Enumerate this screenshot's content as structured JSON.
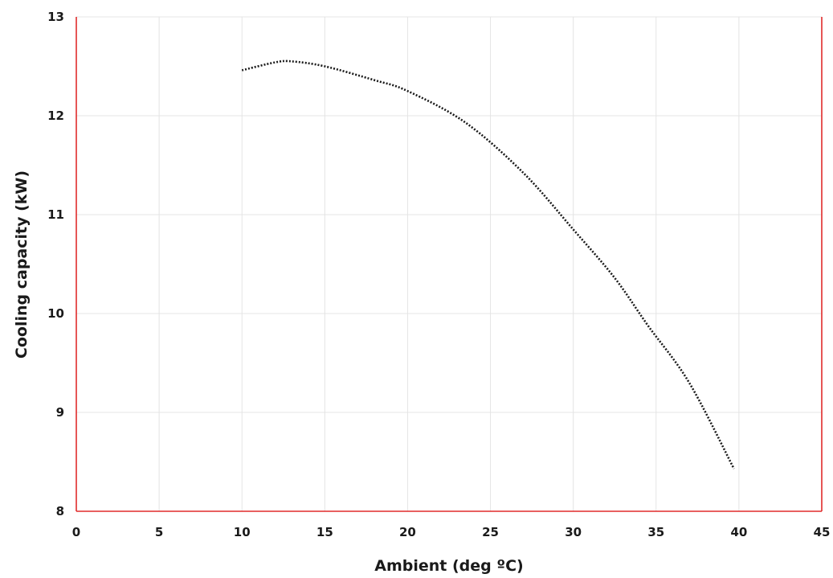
{
  "chart_data": {
    "type": "line",
    "title": "",
    "xlabel": "Ambient (deg ºC)",
    "ylabel": "Cooling capacity (kW)",
    "xlim": [
      0,
      45
    ],
    "ylim": [
      8,
      13
    ],
    "xticks": [
      0,
      5,
      10,
      15,
      20,
      25,
      30,
      35,
      40,
      45
    ],
    "yticks": [
      8,
      9,
      10,
      11,
      12,
      13
    ],
    "grid": true,
    "legend": "none",
    "series": [
      {
        "color": "#1a1a1a",
        "style": "dotted",
        "x": [
          10,
          12,
          13,
          15,
          18,
          20,
          23.5,
          27,
          30,
          32.5,
          34.5,
          37,
          39.7
        ],
        "y": [
          12.46,
          12.54,
          12.55,
          12.5,
          12.36,
          12.25,
          11.93,
          11.42,
          10.85,
          10.36,
          9.88,
          9.3,
          8.43
        ]
      }
    ],
    "colors": {
      "frame": "#e02b2b",
      "grid": "#e4e4e4",
      "text": "#1a1a1a"
    }
  }
}
